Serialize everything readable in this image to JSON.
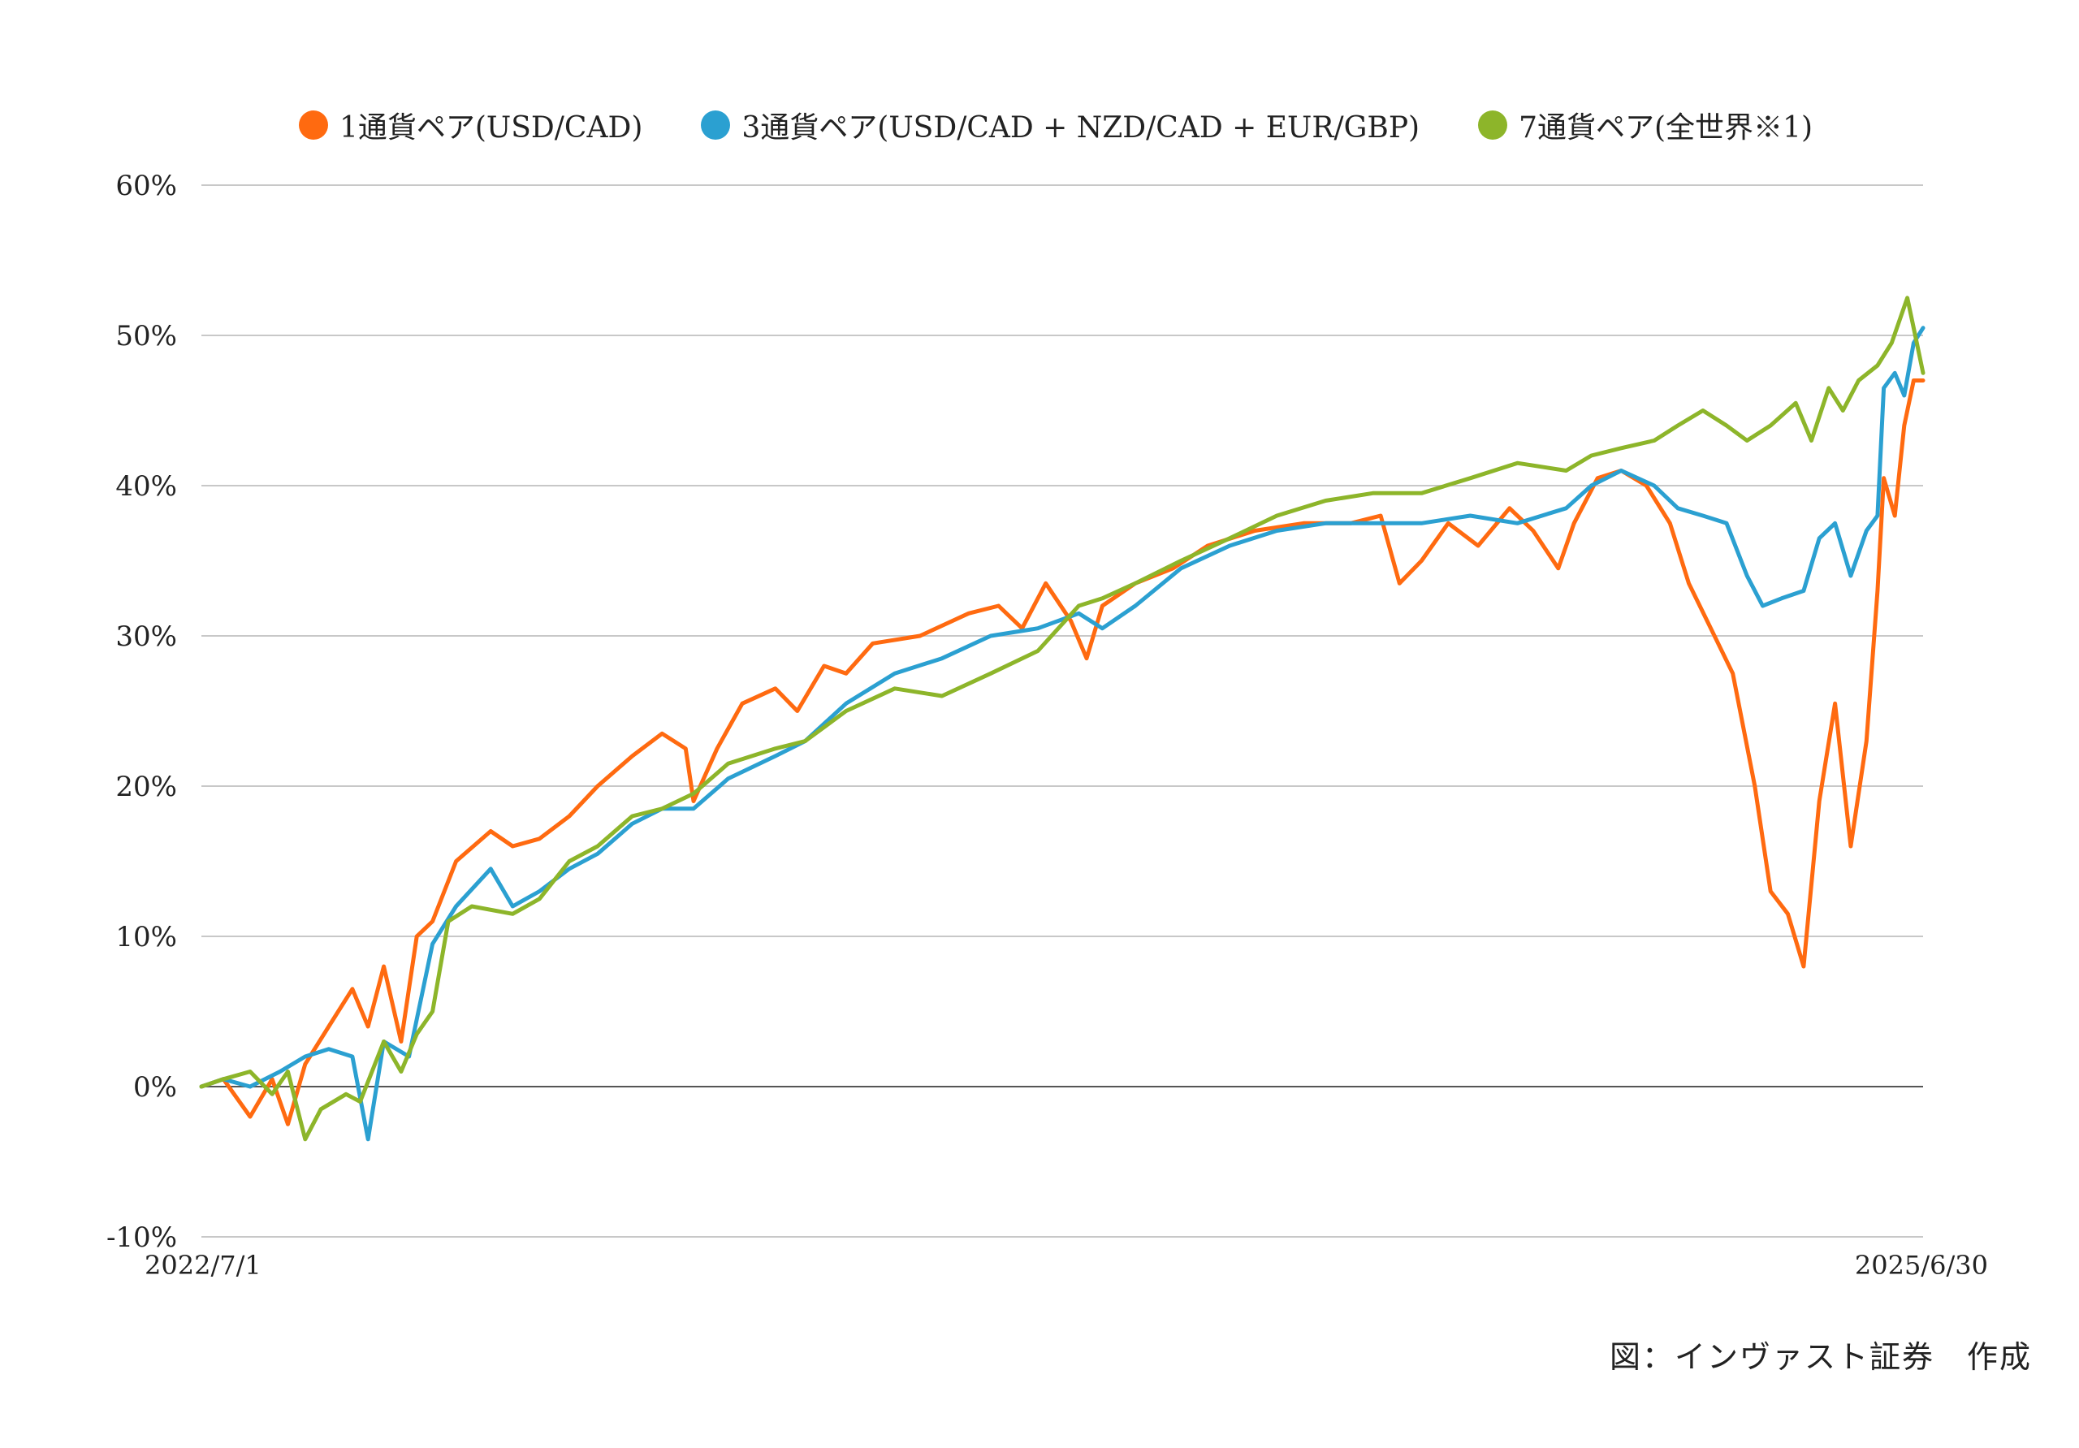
{
  "chart_data": {
    "type": "line",
    "title": "",
    "xlabel": "",
    "ylabel": "",
    "x_range": [
      "2022/7/1",
      "2025/6/30"
    ],
    "x_tick_labels": [
      "2022/7/1",
      "2025/6/30"
    ],
    "ylim": [
      -10,
      60
    ],
    "y_ticks": [
      -10,
      0,
      10,
      20,
      30,
      40,
      50,
      60
    ],
    "y_tick_labels": [
      "-10%",
      "0%",
      "10%",
      "20%",
      "30%",
      "40%",
      "50%",
      "60%"
    ],
    "grid": true,
    "legend_position": "top-center",
    "series": [
      {
        "name": "1通貨ペア(USD/CAD)",
        "color": "#ff6a10",
        "points": [
          [
            "2022/7/1",
            0
          ],
          [
            "2022/7/15",
            0.5
          ],
          [
            "2022/8/1",
            -2
          ],
          [
            "2022/8/15",
            0.5
          ],
          [
            "2022/8/25",
            -2.5
          ],
          [
            "2022/9/5",
            1.5
          ],
          [
            "2022/9/20",
            4
          ],
          [
            "2022/10/5",
            6.5
          ],
          [
            "2022/10/15",
            4
          ],
          [
            "2022/10/25",
            8
          ],
          [
            "2022/11/5",
            3
          ],
          [
            "2022/11/15",
            10
          ],
          [
            "2022/11/25",
            11
          ],
          [
            "2022/12/10",
            15
          ],
          [
            "2023/1/1",
            17
          ],
          [
            "2023/1/15",
            16
          ],
          [
            "2023/2/1",
            16.5
          ],
          [
            "2023/2/20",
            18
          ],
          [
            "2023/3/10",
            20
          ],
          [
            "2023/4/1",
            22
          ],
          [
            "2023/4/20",
            23.5
          ],
          [
            "2023/5/5",
            22.5
          ],
          [
            "2023/5/10",
            19
          ],
          [
            "2023/5/25",
            22.5
          ],
          [
            "2023/6/10",
            25.5
          ],
          [
            "2023/7/1",
            26.5
          ],
          [
            "2023/7/15",
            25
          ],
          [
            "2023/8/1",
            28
          ],
          [
            "2023/8/15",
            27.5
          ],
          [
            "2023/9/1",
            29.5
          ],
          [
            "2023/10/1",
            30
          ],
          [
            "2023/11/1",
            31.5
          ],
          [
            "2023/11/20",
            32
          ],
          [
            "2023/12/5",
            30.5
          ],
          [
            "2023/12/20",
            33.5
          ],
          [
            "2024/1/5",
            31
          ],
          [
            "2024/1/15",
            28.5
          ],
          [
            "2024/1/25",
            32
          ],
          [
            "2024/2/15",
            33.5
          ],
          [
            "2024/3/10",
            34.5
          ],
          [
            "2024/4/1",
            36
          ],
          [
            "2024/5/1",
            37
          ],
          [
            "2024/6/1",
            37.5
          ],
          [
            "2024/7/1",
            37.5
          ],
          [
            "2024/7/20",
            38
          ],
          [
            "2024/8/1",
            33.5
          ],
          [
            "2024/8/15",
            35
          ],
          [
            "2024/9/1",
            37.5
          ],
          [
            "2024/9/20",
            36
          ],
          [
            "2024/10/10",
            38.5
          ],
          [
            "2024/10/25",
            37
          ],
          [
            "2024/11/10",
            34.5
          ],
          [
            "2024/11/20",
            37.5
          ],
          [
            "2024/12/5",
            40.5
          ],
          [
            "2024/12/20",
            41
          ],
          [
            "2025/1/5",
            40
          ],
          [
            "2025/1/20",
            37.5
          ],
          [
            "2025/2/1",
            33.5
          ],
          [
            "2025/2/15",
            30.5
          ],
          [
            "2025/3/1",
            27.5
          ],
          [
            "2025/3/15",
            20
          ],
          [
            "2025/3/25",
            13
          ],
          [
            "2025/4/5",
            11.5
          ],
          [
            "2025/4/15",
            8
          ],
          [
            "2025/4/25",
            19
          ],
          [
            "2025/5/5",
            25.5
          ],
          [
            "2025/5/15",
            16
          ],
          [
            "2025/5/25",
            23
          ],
          [
            "2025/6/1",
            33
          ],
          [
            "2025/6/5",
            40.5
          ],
          [
            "2025/6/12",
            38
          ],
          [
            "2025/6/18",
            44
          ],
          [
            "2025/6/24",
            47
          ],
          [
            "2025/6/30",
            47
          ]
        ]
      },
      {
        "name": "3通貨ペア(USD/CAD + NZD/CAD + EUR/GBP)",
        "color": "#2ba0d1",
        "points": [
          [
            "2022/7/1",
            0
          ],
          [
            "2022/7/15",
            0.5
          ],
          [
            "2022/8/1",
            0
          ],
          [
            "2022/8/20",
            1
          ],
          [
            "2022/9/5",
            2
          ],
          [
            "2022/9/20",
            2.5
          ],
          [
            "2022/10/5",
            2
          ],
          [
            "2022/10/15",
            -3.5
          ],
          [
            "2022/10/25",
            3
          ],
          [
            "2022/11/10",
            2
          ],
          [
            "2022/11/25",
            9.5
          ],
          [
            "2022/12/10",
            12
          ],
          [
            "2023/1/1",
            14.5
          ],
          [
            "2023/1/15",
            12
          ],
          [
            "2023/2/1",
            13
          ],
          [
            "2023/2/20",
            14.5
          ],
          [
            "2023/3/10",
            15.5
          ],
          [
            "2023/4/1",
            17.5
          ],
          [
            "2023/4/20",
            18.5
          ],
          [
            "2023/5/10",
            18.5
          ],
          [
            "2023/6/1",
            20.5
          ],
          [
            "2023/7/1",
            22
          ],
          [
            "2023/7/20",
            23
          ],
          [
            "2023/8/15",
            25.5
          ],
          [
            "2023/9/15",
            27.5
          ],
          [
            "2023/10/15",
            28.5
          ],
          [
            "2023/11/15",
            30
          ],
          [
            "2023/12/15",
            30.5
          ],
          [
            "2024/1/10",
            31.5
          ],
          [
            "2024/1/25",
            30.5
          ],
          [
            "2024/2/15",
            32
          ],
          [
            "2024/3/15",
            34.5
          ],
          [
            "2024/4/15",
            36
          ],
          [
            "2024/5/15",
            37
          ],
          [
            "2024/6/15",
            37.5
          ],
          [
            "2024/7/15",
            37.5
          ],
          [
            "2024/8/15",
            37.5
          ],
          [
            "2024/9/15",
            38
          ],
          [
            "2024/10/15",
            37.5
          ],
          [
            "2024/11/15",
            38.5
          ],
          [
            "2024/12/1",
            40
          ],
          [
            "2024/12/20",
            41
          ],
          [
            "2025/1/10",
            40
          ],
          [
            "2025/1/25",
            38.5
          ],
          [
            "2025/2/10",
            38
          ],
          [
            "2025/2/25",
            37.5
          ],
          [
            "2025/3/10",
            34
          ],
          [
            "2025/3/20",
            32
          ],
          [
            "2025/4/1",
            32.5
          ],
          [
            "2025/4/15",
            33
          ],
          [
            "2025/4/25",
            36.5
          ],
          [
            "2025/5/5",
            37.5
          ],
          [
            "2025/5/15",
            34
          ],
          [
            "2025/5/25",
            37
          ],
          [
            "2025/6/1",
            38
          ],
          [
            "2025/6/5",
            46.5
          ],
          [
            "2025/6/12",
            47.5
          ],
          [
            "2025/6/18",
            46
          ],
          [
            "2025/6/24",
            49.5
          ],
          [
            "2025/6/30",
            50.5
          ]
        ]
      },
      {
        "name": "7通貨ペア(全世界※1)",
        "color": "#8db52a",
        "points": [
          [
            "2022/7/1",
            0
          ],
          [
            "2022/7/15",
            0.5
          ],
          [
            "2022/8/1",
            1
          ],
          [
            "2022/8/15",
            -0.5
          ],
          [
            "2022/8/25",
            1
          ],
          [
            "2022/9/5",
            -3.5
          ],
          [
            "2022/9/15",
            -1.5
          ],
          [
            "2022/10/1",
            -0.5
          ],
          [
            "2022/10/10",
            -1
          ],
          [
            "2022/10/25",
            3
          ],
          [
            "2022/11/5",
            1
          ],
          [
            "2022/11/15",
            3.5
          ],
          [
            "2022/11/25",
            5
          ],
          [
            "2022/12/5",
            11
          ],
          [
            "2022/12/20",
            12
          ],
          [
            "2023/1/15",
            11.5
          ],
          [
            "2023/2/1",
            12.5
          ],
          [
            "2023/2/20",
            15
          ],
          [
            "2023/3/10",
            16
          ],
          [
            "2023/4/1",
            18
          ],
          [
            "2023/4/20",
            18.5
          ],
          [
            "2023/5/10",
            19.5
          ],
          [
            "2023/6/1",
            21.5
          ],
          [
            "2023/7/1",
            22.5
          ],
          [
            "2023/7/20",
            23
          ],
          [
            "2023/8/15",
            25
          ],
          [
            "2023/9/15",
            26.5
          ],
          [
            "2023/10/15",
            26
          ],
          [
            "2023/11/15",
            27.5
          ],
          [
            "2023/12/15",
            29
          ],
          [
            "2024/1/10",
            32
          ],
          [
            "2024/1/25",
            32.5
          ],
          [
            "2024/2/15",
            33.5
          ],
          [
            "2024/3/15",
            35
          ],
          [
            "2024/4/15",
            36.5
          ],
          [
            "2024/5/15",
            38
          ],
          [
            "2024/6/15",
            39
          ],
          [
            "2024/7/15",
            39.5
          ],
          [
            "2024/8/15",
            39.5
          ],
          [
            "2024/9/15",
            40.5
          ],
          [
            "2024/10/15",
            41.5
          ],
          [
            "2024/11/15",
            41
          ],
          [
            "2024/12/1",
            42
          ],
          [
            "2024/12/20",
            42.5
          ],
          [
            "2025/1/10",
            43
          ],
          [
            "2025/1/25",
            44
          ],
          [
            "2025/2/10",
            45
          ],
          [
            "2025/2/25",
            44
          ],
          [
            "2025/3/10",
            43
          ],
          [
            "2025/3/25",
            44
          ],
          [
            "2025/4/10",
            45.5
          ],
          [
            "2025/4/20",
            43
          ],
          [
            "2025/5/1",
            46.5
          ],
          [
            "2025/5/10",
            45
          ],
          [
            "2025/5/20",
            47
          ],
          [
            "2025/6/1",
            48
          ],
          [
            "2025/6/10",
            49.5
          ],
          [
            "2025/6/20",
            52.5
          ],
          [
            "2025/6/26",
            49.5
          ],
          [
            "2025/6/30",
            47.5
          ]
        ]
      }
    ],
    "source_note": "図：インヴァスト証券　作成"
  }
}
